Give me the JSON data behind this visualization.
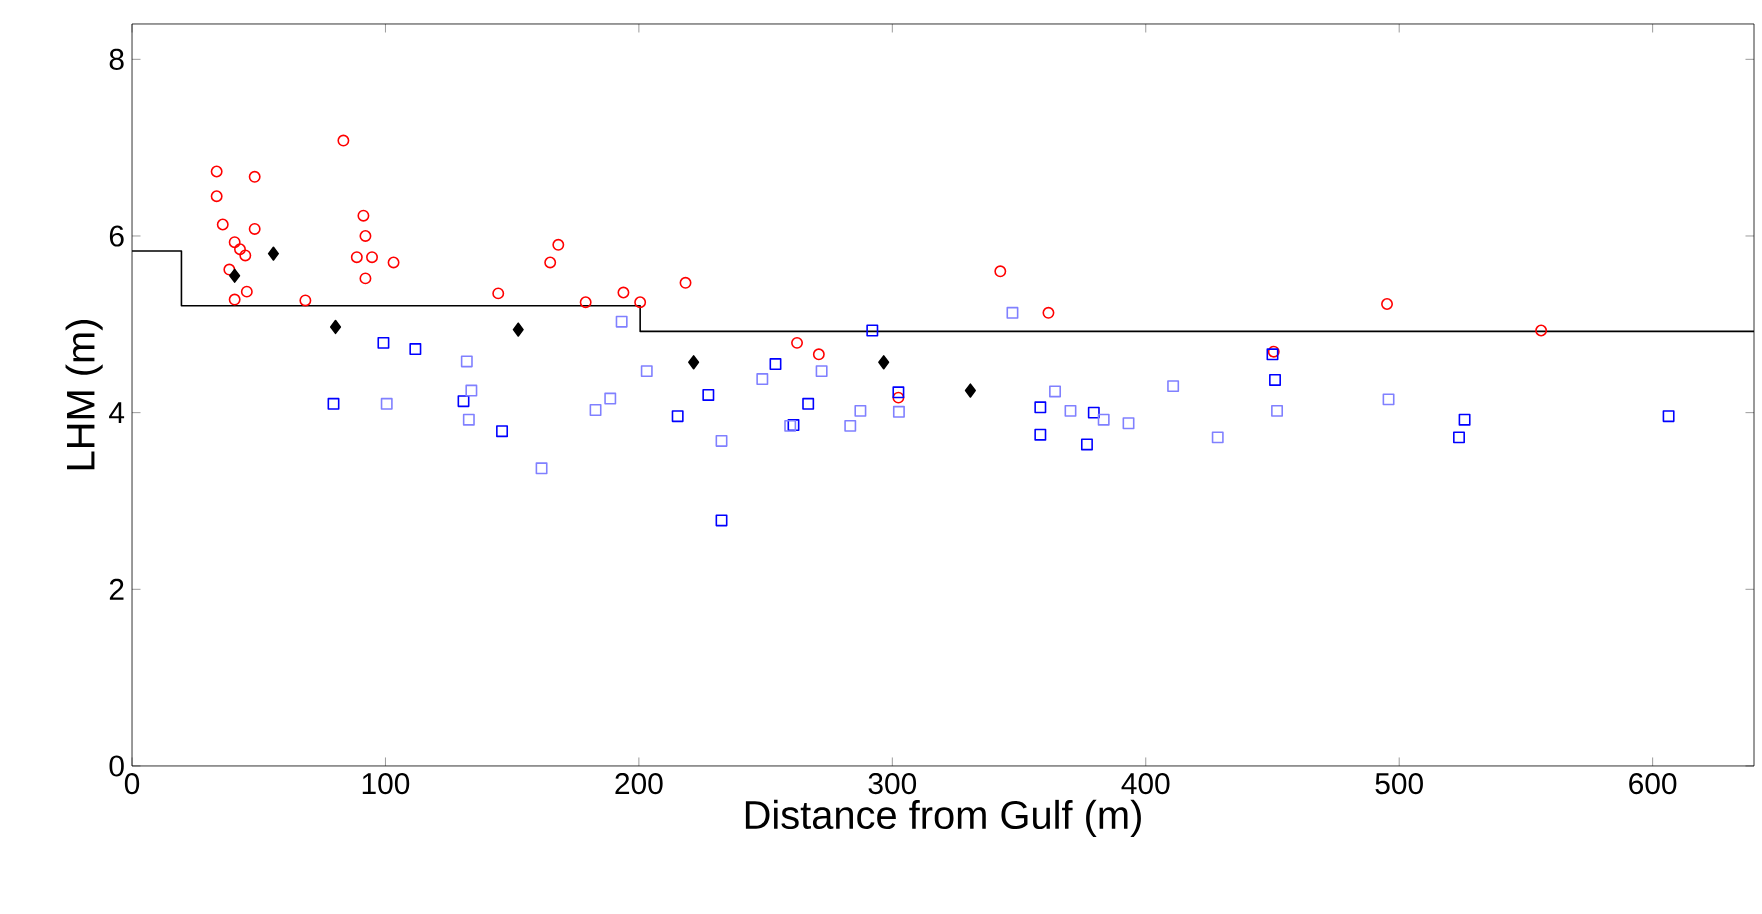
{
  "chart_data": {
    "type": "scatter",
    "xlabel": "Distance from Gulf (m)",
    "ylabel": "LHM (m)",
    "xlim": [
      0,
      640
    ],
    "ylim": [
      0,
      8.4
    ],
    "xticks": [
      0,
      100,
      200,
      300,
      400,
      500,
      600
    ],
    "yticks": [
      0,
      2,
      4,
      6,
      8
    ],
    "grid": false,
    "series": [
      {
        "color": "#ff0000",
        "marker": "circle",
        "x": [
          33.4,
          48.4,
          33.4,
          35.8,
          48.4,
          40.5,
          42.6,
          44.7,
          38.4,
          40.5,
          45.3,
          68.4,
          83.4,
          91.3,
          92.1,
          88.7,
          94.7,
          92.1,
          103.2,
          144.5,
          168.2,
          165,
          179,
          193.9,
          200.5,
          218.4,
          262.4,
          271,
          342.6,
          361.6,
          302.4,
          495.2,
          556,
          450.5
        ],
        "values": [
          6.73,
          6.67,
          6.45,
          6.13,
          6.08,
          5.93,
          5.85,
          5.78,
          5.62,
          5.28,
          5.37,
          5.27,
          7.08,
          6.23,
          6.0,
          5.76,
          5.76,
          5.52,
          5.7,
          5.35,
          5.9,
          5.7,
          5.25,
          5.36,
          5.25,
          5.47,
          4.79,
          4.66,
          5.6,
          5.13,
          4.17,
          5.23,
          4.93,
          4.69
        ]
      },
      {
        "color": "#0000ff",
        "marker": "square",
        "x": [
          99.2,
          111.8,
          79.5,
          146,
          130.8,
          227.4,
          215.3,
          232.6,
          253.9,
          266.8,
          261,
          292.1,
          302.4,
          358.4,
          358.4,
          376.8,
          379.5,
          450,
          451,
          525.8,
          523.6,
          606.3
        ],
        "values": [
          4.79,
          4.72,
          4.1,
          3.79,
          4.13,
          4.2,
          3.96,
          2.78,
          4.55,
          4.1,
          3.86,
          4.93,
          4.23,
          4.06,
          3.75,
          3.64,
          4.0,
          4.66,
          4.37,
          3.92,
          3.72,
          3.96
        ]
      },
      {
        "color": "#8080ff",
        "marker": "square",
        "x": [
          100.5,
          132.1,
          133.9,
          132.9,
          193.2,
          203.1,
          188.7,
          182.9,
          161.6,
          232.6,
          248.7,
          272.1,
          283.4,
          287.4,
          259.7,
          347.4,
          364.2,
          370.3,
          383.4,
          393.2,
          410.8,
          428.4,
          302.6,
          451.8,
          495.8
        ],
        "values": [
          4.1,
          4.58,
          4.25,
          3.92,
          5.03,
          4.47,
          4.16,
          4.03,
          3.37,
          3.68,
          4.38,
          4.47,
          3.85,
          4.02,
          3.85,
          5.13,
          4.24,
          4.02,
          3.92,
          3.88,
          4.3,
          3.72,
          4.01,
          4.02,
          4.15
        ]
      },
      {
        "color": "#000000",
        "marker": "diamond",
        "x": [
          55.8,
          40.5,
          80.3,
          152.4,
          221.6,
          296.6,
          330.8
        ],
        "values": [
          5.8,
          5.55,
          4.97,
          4.94,
          4.57,
          4.57,
          4.25
        ]
      },
      {
        "type": "step",
        "color": "#000000",
        "marker": "none",
        "x": [
          0,
          19.5,
          200.5,
          640
        ],
        "values": [
          5.83,
          5.21,
          4.92,
          4.92
        ]
      }
    ]
  }
}
